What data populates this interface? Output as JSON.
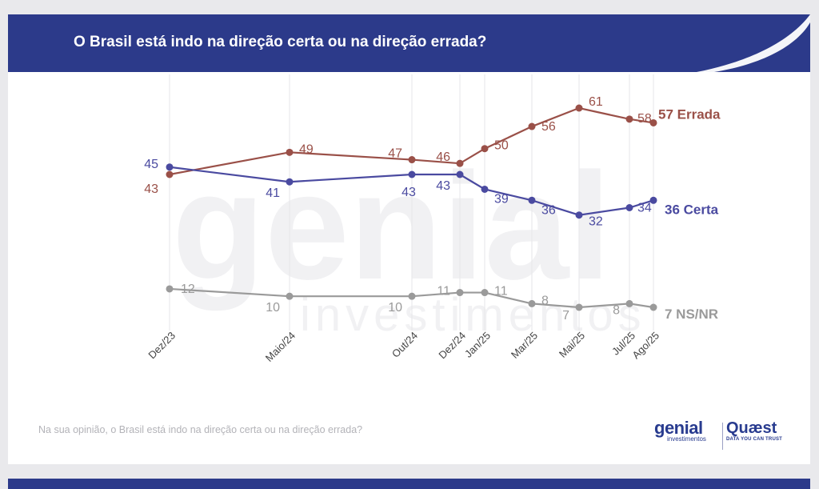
{
  "header": {
    "title": "O Brasil está indo na direção certa ou na direção errada?"
  },
  "footer": {
    "question": "Na sua opinião, o Brasil está indo na direção certa ou na direção errada?"
  },
  "logos": {
    "genial": "genial",
    "genial_sub": "investimentos",
    "quaest": "Quæst",
    "quaest_tag": "DATA YOU CAN TRUST"
  },
  "watermark": {
    "line1": "genial",
    "line2": "investimentos"
  },
  "colors": {
    "header": "#2c3a8a",
    "errada": "#9a5048",
    "certa": "#4a4aa0",
    "nsnr": "#9a9a9a"
  },
  "chart_data": {
    "type": "line",
    "x": [
      "Dez/23",
      "Maio/24",
      "Out/24",
      "Dez/24",
      "Jan/25",
      "Mar/25",
      "Mai/25",
      "Jul/25",
      "Ago/25"
    ],
    "ylim": [
      0,
      70
    ],
    "grid": "vertical",
    "series": [
      {
        "key": "errada",
        "name": "Errada",
        "end_label": "57 Errada",
        "color": "#9a5048",
        "values": [
          43,
          49,
          47,
          46,
          50,
          56,
          61,
          58,
          57
        ]
      },
      {
        "key": "certa",
        "name": "Certa",
        "end_label": "36 Certa",
        "color": "#4a4aa0",
        "values": [
          45,
          41,
          43,
          43,
          39,
          36,
          32,
          34,
          36
        ]
      },
      {
        "key": "nsnr",
        "name": "NS/NR",
        "end_label": "7 NS/NR",
        "color": "#9a9a9a",
        "values": [
          12,
          10,
          10,
          11,
          11,
          8,
          7,
          8,
          7
        ]
      }
    ]
  }
}
